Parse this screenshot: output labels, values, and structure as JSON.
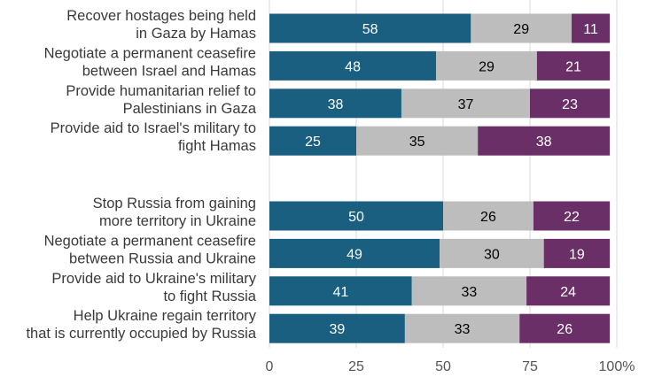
{
  "chart_data": {
    "type": "bar",
    "orientation": "horizontal",
    "stacked": true,
    "xlim": [
      0,
      100
    ],
    "x_ticks": [
      "0",
      "25",
      "50",
      "75",
      "100%"
    ],
    "grid": true,
    "colors": [
      "#1a5e80",
      "#bdbdbd",
      "#6b2f67"
    ],
    "value_label_colors": [
      "#ffffff",
      "#000000",
      "#ffffff"
    ],
    "groups": [
      {
        "categories": [
          [
            "Recover hostages being held",
            "in Gaza by Hamas"
          ],
          [
            "Negotiate a permanent ceasefire",
            "between Israel and Hamas"
          ],
          [
            "Provide humanitarian relief to",
            "Palestinians in Gaza"
          ],
          [
            "Provide aid to Israel's military to",
            "fight Hamas"
          ]
        ],
        "series": [
          {
            "values": [
              58,
              48,
              38,
              25
            ]
          },
          {
            "values": [
              29,
              29,
              37,
              35
            ]
          },
          {
            "values": [
              11,
              21,
              23,
              38
            ]
          }
        ]
      },
      {
        "categories": [
          [
            "Stop Russia from gaining",
            "more territory in Ukraine"
          ],
          [
            "Negotiate a permanent ceasefire",
            "between Russia and Ukraine"
          ],
          [
            "Provide aid to Ukraine's military",
            "to fight Russia"
          ],
          [
            "Help Ukraine regain territory",
            "that is currently occupied by Russia"
          ]
        ],
        "series": [
          {
            "values": [
              50,
              49,
              41,
              39
            ]
          },
          {
            "values": [
              26,
              30,
              33,
              33
            ]
          },
          {
            "values": [
              22,
              19,
              24,
              26
            ]
          }
        ]
      }
    ]
  }
}
